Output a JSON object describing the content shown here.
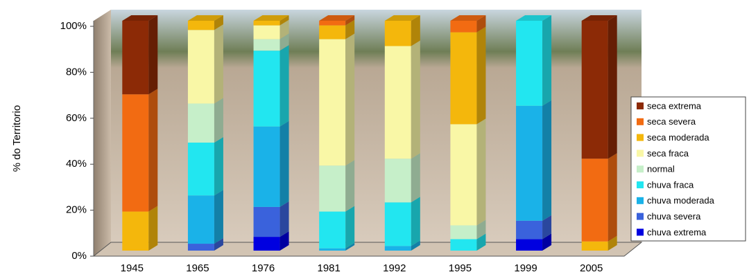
{
  "chart_data": {
    "type": "stacked_bar",
    "y_label": "% do Territorio",
    "categories": [
      "1945",
      "1965",
      "1976",
      "1981",
      "1992",
      "1995",
      "1999",
      "2005"
    ],
    "series": [
      {
        "name": "chuva extrema",
        "color": "#0000e0",
        "values": [
          0,
          0,
          6,
          0,
          0,
          0,
          5,
          0
        ]
      },
      {
        "name": "chuva severa",
        "color": "#3a62dc",
        "values": [
          0,
          3,
          13,
          0,
          0,
          0,
          8,
          0
        ]
      },
      {
        "name": "chuva moderada",
        "color": "#1ab2e8",
        "values": [
          0,
          21,
          35,
          1,
          2,
          0,
          50,
          0
        ]
      },
      {
        "name": "chuva fraca",
        "color": "#22e6f0",
        "values": [
          0,
          23,
          33,
          16,
          19,
          5,
          37,
          0
        ]
      },
      {
        "name": "normal",
        "color": "#c6efc9",
        "values": [
          0,
          17,
          5,
          20,
          19,
          6,
          0,
          0
        ]
      },
      {
        "name": "seca fraca",
        "color": "#f9f7a6",
        "values": [
          0,
          32,
          6,
          55,
          49,
          44,
          0,
          0
        ]
      },
      {
        "name": "seca moderada",
        "color": "#f4b70c",
        "values": [
          17,
          4,
          2,
          6,
          11,
          40,
          0,
          4
        ]
      },
      {
        "name": "seca severa",
        "color": "#f26b12",
        "values": [
          51,
          0,
          0,
          2,
          0,
          5,
          0,
          36
        ]
      },
      {
        "name": "seca extrema",
        "color": "#8c2a06",
        "values": [
          32,
          0,
          0,
          0,
          0,
          0,
          0,
          60
        ]
      }
    ],
    "ylim": [
      0,
      100
    ],
    "yticks": [
      {
        "value": 0,
        "label": "0%"
      },
      {
        "value": 20,
        "label": "20%"
      },
      {
        "value": 40,
        "label": "40%"
      },
      {
        "value": 60,
        "label": "60%"
      },
      {
        "value": 80,
        "label": "80%"
      },
      {
        "value": 100,
        "label": "100%"
      }
    ],
    "grid": false,
    "legend": "right"
  }
}
